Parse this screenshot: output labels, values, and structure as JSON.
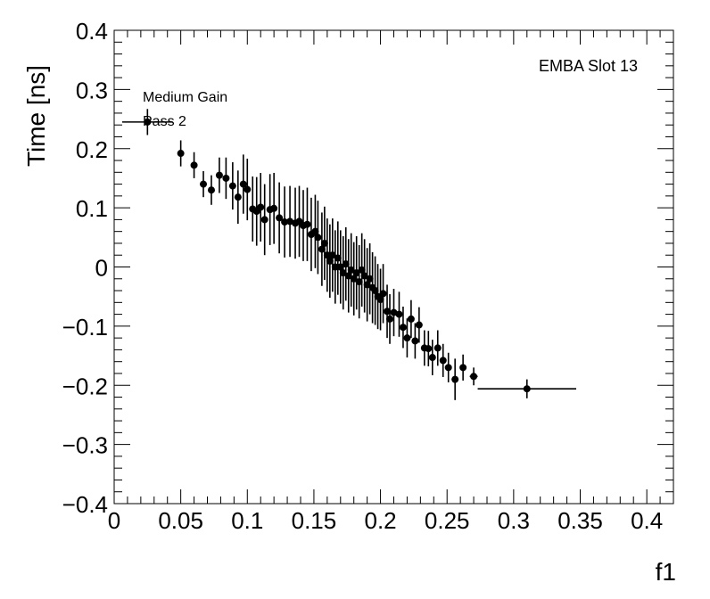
{
  "chart_data": {
    "type": "scatter",
    "xlabel": "f1",
    "ylabel": "Time [ns]",
    "xlim": [
      0,
      0.42
    ],
    "ylim": [
      -0.4,
      0.4
    ],
    "grid": false,
    "legend": "none",
    "x_ticks": [
      "0",
      "0.05",
      "0.1",
      "0.15",
      "0.2",
      "0.25",
      "0.3",
      "0.35",
      "0.4"
    ],
    "y_ticks": [
      "−0.4",
      "−0.3",
      "−0.2",
      "−0.1",
      "0",
      "0.1",
      "0.2",
      "0.3",
      "0.4"
    ],
    "annotations": {
      "top_right": "EMBA Slot 13",
      "line1": "Medium Gain",
      "line2": "Pass 2"
    },
    "color": "#000000",
    "points": [
      {
        "x": 0.025,
        "y": 0.245,
        "xerr": 0.019,
        "yerr": 0.022
      },
      {
        "x": 0.05,
        "y": 0.192,
        "xerr": 0.002,
        "yerr": 0.022
      },
      {
        "x": 0.06,
        "y": 0.172,
        "xerr": 0.002,
        "yerr": 0.022
      },
      {
        "x": 0.067,
        "y": 0.14,
        "xerr": 0.002,
        "yerr": 0.022
      },
      {
        "x": 0.073,
        "y": 0.13,
        "xerr": 0.002,
        "yerr": 0.025
      },
      {
        "x": 0.079,
        "y": 0.155,
        "xerr": 0.002,
        "yerr": 0.03
      },
      {
        "x": 0.084,
        "y": 0.15,
        "xerr": 0.002,
        "yerr": 0.035
      },
      {
        "x": 0.089,
        "y": 0.137,
        "xerr": 0.002,
        "yerr": 0.04
      },
      {
        "x": 0.093,
        "y": 0.118,
        "xerr": 0.002,
        "yerr": 0.045
      },
      {
        "x": 0.097,
        "y": 0.14,
        "xerr": 0.002,
        "yerr": 0.05
      },
      {
        "x": 0.1,
        "y": 0.131,
        "xerr": 0.002,
        "yerr": 0.052
      },
      {
        "x": 0.104,
        "y": 0.098,
        "xerr": 0.002,
        "yerr": 0.055
      },
      {
        "x": 0.107,
        "y": 0.094,
        "xerr": 0.002,
        "yerr": 0.058
      },
      {
        "x": 0.11,
        "y": 0.101,
        "xerr": 0.002,
        "yerr": 0.058
      },
      {
        "x": 0.113,
        "y": 0.08,
        "xerr": 0.002,
        "yerr": 0.06
      },
      {
        "x": 0.117,
        "y": 0.097,
        "xerr": 0.002,
        "yerr": 0.06
      },
      {
        "x": 0.12,
        "y": 0.099,
        "xerr": 0.002,
        "yerr": 0.06
      },
      {
        "x": 0.124,
        "y": 0.083,
        "xerr": 0.002,
        "yerr": 0.06
      },
      {
        "x": 0.128,
        "y": 0.076,
        "xerr": 0.002,
        "yerr": 0.06
      },
      {
        "x": 0.132,
        "y": 0.077,
        "xerr": 0.002,
        "yerr": 0.06
      },
      {
        "x": 0.136,
        "y": 0.074,
        "xerr": 0.002,
        "yerr": 0.06
      },
      {
        "x": 0.139,
        "y": 0.077,
        "xerr": 0.002,
        "yerr": 0.06
      },
      {
        "x": 0.142,
        "y": 0.07,
        "xerr": 0.002,
        "yerr": 0.06
      },
      {
        "x": 0.145,
        "y": 0.072,
        "xerr": 0.002,
        "yerr": 0.062
      },
      {
        "x": 0.148,
        "y": 0.055,
        "xerr": 0.002,
        "yerr": 0.062
      },
      {
        "x": 0.151,
        "y": 0.06,
        "xerr": 0.002,
        "yerr": 0.062
      },
      {
        "x": 0.153,
        "y": 0.05,
        "xerr": 0.002,
        "yerr": 0.062
      },
      {
        "x": 0.156,
        "y": 0.03,
        "xerr": 0.002,
        "yerr": 0.062
      },
      {
        "x": 0.158,
        "y": 0.04,
        "xerr": 0.002,
        "yerr": 0.062
      },
      {
        "x": 0.16,
        "y": 0.02,
        "xerr": 0.002,
        "yerr": 0.062
      },
      {
        "x": 0.162,
        "y": 0.01,
        "xerr": 0.002,
        "yerr": 0.062
      },
      {
        "x": 0.164,
        "y": 0.02,
        "xerr": 0.002,
        "yerr": 0.062
      },
      {
        "x": 0.166,
        "y": 0.0,
        "xerr": 0.002,
        "yerr": 0.062
      },
      {
        "x": 0.168,
        "y": 0.015,
        "xerr": 0.002,
        "yerr": 0.062
      },
      {
        "x": 0.17,
        "y": 0.0,
        "xerr": 0.002,
        "yerr": 0.062
      },
      {
        "x": 0.172,
        "y": -0.01,
        "xerr": 0.002,
        "yerr": 0.062
      },
      {
        "x": 0.174,
        "y": 0.005,
        "xerr": 0.002,
        "yerr": 0.062
      },
      {
        "x": 0.176,
        "y": -0.015,
        "xerr": 0.002,
        "yerr": 0.062
      },
      {
        "x": 0.178,
        "y": -0.005,
        "xerr": 0.002,
        "yerr": 0.062
      },
      {
        "x": 0.18,
        "y": -0.02,
        "xerr": 0.002,
        "yerr": 0.062
      },
      {
        "x": 0.182,
        "y": -0.01,
        "xerr": 0.002,
        "yerr": 0.062
      },
      {
        "x": 0.184,
        "y": -0.025,
        "xerr": 0.002,
        "yerr": 0.062
      },
      {
        "x": 0.186,
        "y": -0.005,
        "xerr": 0.002,
        "yerr": 0.062
      },
      {
        "x": 0.188,
        "y": -0.015,
        "xerr": 0.002,
        "yerr": 0.062
      },
      {
        "x": 0.19,
        "y": -0.03,
        "xerr": 0.002,
        "yerr": 0.062
      },
      {
        "x": 0.192,
        "y": -0.02,
        "xerr": 0.002,
        "yerr": 0.06
      },
      {
        "x": 0.194,
        "y": -0.035,
        "xerr": 0.002,
        "yerr": 0.06
      },
      {
        "x": 0.196,
        "y": -0.04,
        "xerr": 0.002,
        "yerr": 0.058
      },
      {
        "x": 0.198,
        "y": -0.05,
        "xerr": 0.002,
        "yerr": 0.055
      },
      {
        "x": 0.2,
        "y": -0.055,
        "xerr": 0.002,
        "yerr": 0.052
      },
      {
        "x": 0.202,
        "y": -0.045,
        "xerr": 0.002,
        "yerr": 0.05
      },
      {
        "x": 0.205,
        "y": -0.075,
        "xerr": 0.002,
        "yerr": 0.045
      },
      {
        "x": 0.207,
        "y": -0.088,
        "xerr": 0.002,
        "yerr": 0.042
      },
      {
        "x": 0.21,
        "y": -0.077,
        "xerr": 0.002,
        "yerr": 0.04
      },
      {
        "x": 0.214,
        "y": -0.08,
        "xerr": 0.002,
        "yerr": 0.038
      },
      {
        "x": 0.217,
        "y": -0.102,
        "xerr": 0.002,
        "yerr": 0.035
      },
      {
        "x": 0.22,
        "y": -0.12,
        "xerr": 0.002,
        "yerr": 0.033
      },
      {
        "x": 0.223,
        "y": -0.088,
        "xerr": 0.002,
        "yerr": 0.032
      },
      {
        "x": 0.226,
        "y": -0.125,
        "xerr": 0.002,
        "yerr": 0.03
      },
      {
        "x": 0.229,
        "y": -0.098,
        "xerr": 0.002,
        "yerr": 0.03
      },
      {
        "x": 0.233,
        "y": -0.137,
        "xerr": 0.002,
        "yerr": 0.03
      },
      {
        "x": 0.236,
        "y": -0.138,
        "xerr": 0.002,
        "yerr": 0.03
      },
      {
        "x": 0.239,
        "y": -0.153,
        "xerr": 0.002,
        "yerr": 0.03
      },
      {
        "x": 0.243,
        "y": -0.137,
        "xerr": 0.002,
        "yerr": 0.03
      },
      {
        "x": 0.247,
        "y": -0.158,
        "xerr": 0.002,
        "yerr": 0.028
      },
      {
        "x": 0.251,
        "y": -0.17,
        "xerr": 0.002,
        "yerr": 0.025
      },
      {
        "x": 0.256,
        "y": -0.19,
        "xerr": 0.002,
        "yerr": 0.035
      },
      {
        "x": 0.262,
        "y": -0.17,
        "xerr": 0.002,
        "yerr": 0.022
      },
      {
        "x": 0.27,
        "y": -0.185,
        "xerr": 0.003,
        "yerr": 0.015
      },
      {
        "x": 0.31,
        "y": -0.206,
        "xerr": 0.037,
        "yerr": 0.016
      }
    ]
  }
}
